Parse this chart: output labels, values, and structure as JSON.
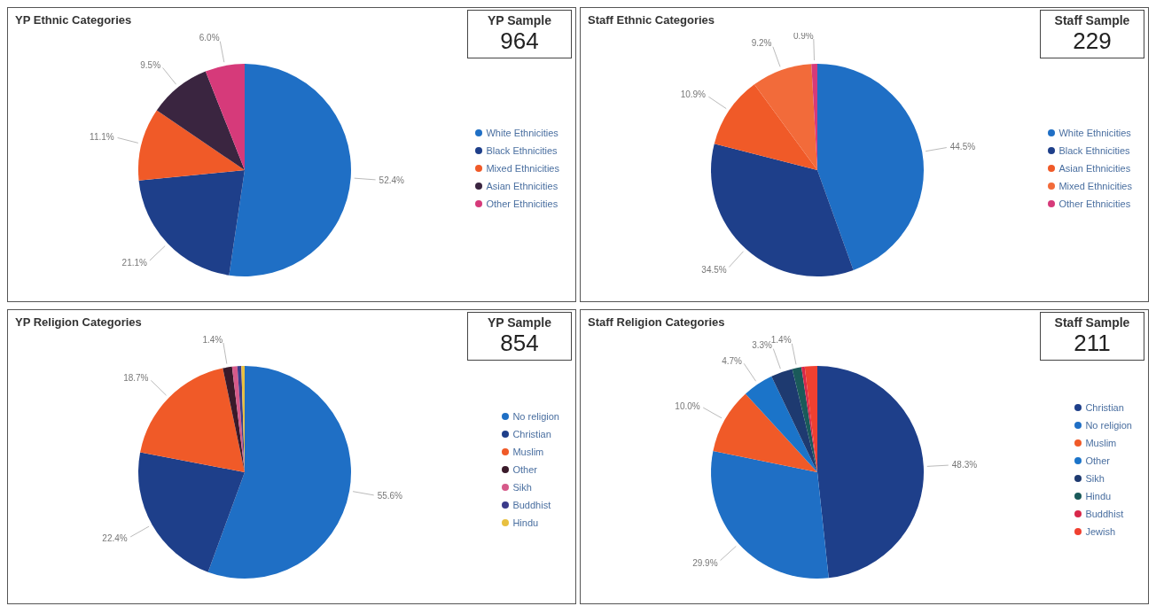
{
  "chart_data": [
    {
      "type": "pie",
      "title": "YP Ethnic Categories",
      "categories": [
        "White Ethnicities",
        "Black Ethnicities",
        "Mixed Ethnicities",
        "Asian Ethnicities",
        "Other Ethnicities"
      ],
      "values": [
        52.4,
        21.1,
        11.1,
        9.5,
        6.0
      ],
      "value_labels": [
        "52.4%",
        "21.1%",
        "11.1%",
        "9.5%",
        "6.0%"
      ],
      "colors": [
        "#1f6fc5",
        "#1e3f8a",
        "#f05a28",
        "#3a2540",
        "#d63a7a"
      ],
      "legend": "right"
    },
    {
      "type": "other",
      "title": "YP Sample",
      "annotations": [
        "964"
      ]
    },
    {
      "type": "pie",
      "title": "Staff Ethnic Categories",
      "categories": [
        "White Ethnicities",
        "Black Ethnicities",
        "Asian Ethnicities",
        "Mixed Ethnicities",
        "Other Ethnicities"
      ],
      "values": [
        44.5,
        34.5,
        10.9,
        9.2,
        0.9
      ],
      "value_labels": [
        "44.5%",
        "34.5%",
        "10.9%",
        "9.2%",
        "0.9%"
      ],
      "colors": [
        "#1f6fc5",
        "#1e3f8a",
        "#f05a28",
        "#f26b3a",
        "#d63a7a"
      ],
      "legend": "right"
    },
    {
      "type": "other",
      "title": "Staff Sample",
      "annotations": [
        "229"
      ]
    },
    {
      "type": "pie",
      "title": "YP Religion Categories",
      "categories": [
        "No religion",
        "Christian",
        "Muslim",
        "Other",
        "Sikh",
        "Buddhist",
        "Hindu"
      ],
      "values": [
        55.6,
        22.4,
        18.7,
        1.4,
        0.8,
        0.6,
        0.5
      ],
      "value_labels": [
        "55.6%",
        "22.4%",
        "18.7%",
        "1.4%",
        null,
        null,
        null
      ],
      "colors": [
        "#1f6fc5",
        "#1e3f8a",
        "#f05a28",
        "#3a1a2a",
        "#d65a8a",
        "#3b3b8a",
        "#e8c040"
      ],
      "legend": "right"
    },
    {
      "type": "other",
      "title": "YP Sample",
      "annotations": [
        "854"
      ]
    },
    {
      "type": "pie",
      "title": "Staff Religion Categories",
      "categories": [
        "Christian",
        "No religion",
        "Muslim",
        "Other",
        "Sikh",
        "Hindu",
        "Buddhist",
        "Jewish"
      ],
      "values": [
        48.3,
        29.9,
        10.0,
        4.7,
        3.3,
        1.4,
        0.5,
        1.9
      ],
      "value_labels": [
        "48.3%",
        "29.9%",
        "10.0%",
        "4.7%",
        "3.3%",
        "1.4%",
        null,
        null
      ],
      "colors": [
        "#1e3f8a",
        "#1f6fc5",
        "#f05a28",
        "#1b74c9",
        "#1e3a70",
        "#1a5a5a",
        "#d8284a",
        "#f04030"
      ],
      "legend": "right"
    },
    {
      "type": "other",
      "title": "Staff Sample",
      "annotations": [
        "211"
      ]
    }
  ]
}
